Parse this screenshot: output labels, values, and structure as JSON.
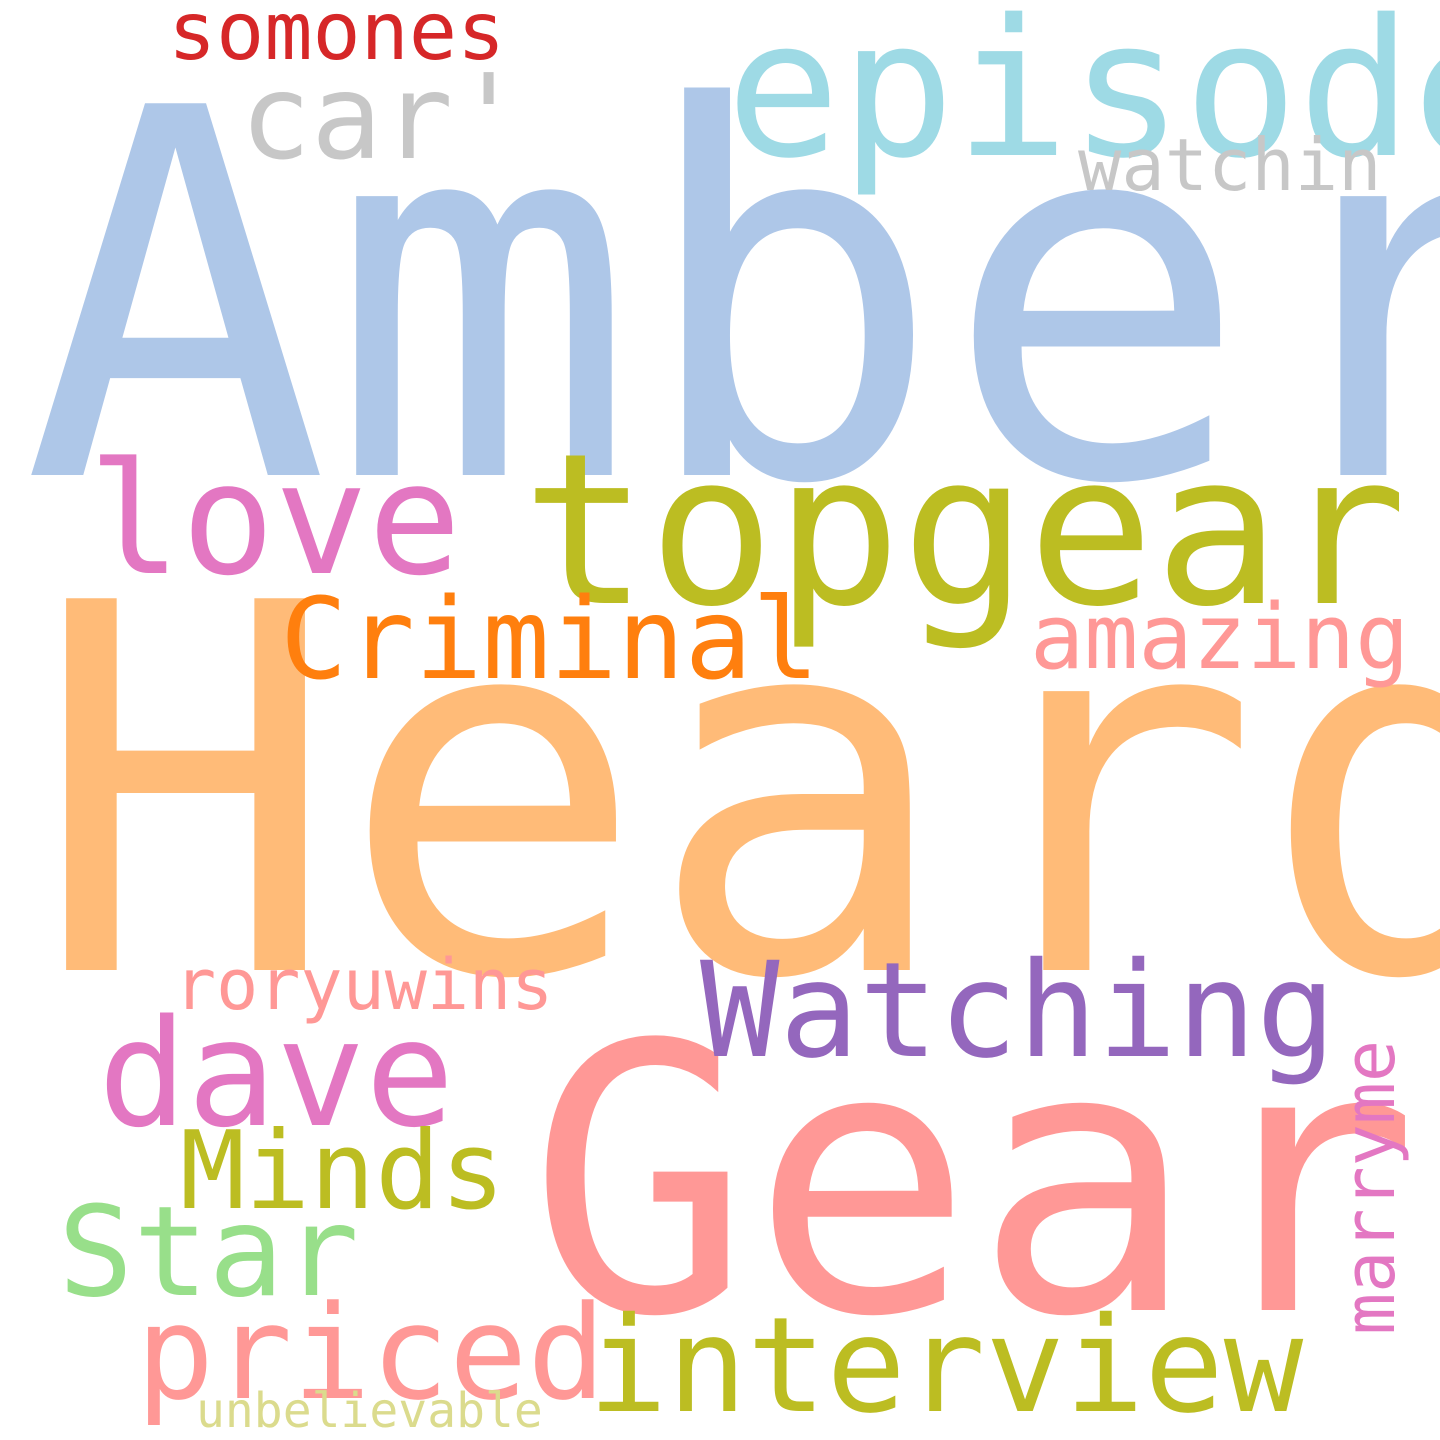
{
  "words": [
    {
      "text": "Amber",
      "color": "#aec7e8"
    },
    {
      "text": "Heard",
      "color": "#ffbb78"
    },
    {
      "text": "Gear",
      "color": "#ff9896"
    },
    {
      "text": "topgear",
      "color": "#bcbd22"
    },
    {
      "text": "episode",
      "color": "#9edae5"
    },
    {
      "text": "car'",
      "color": "#c7c7c7"
    },
    {
      "text": "somones",
      "color": "#d62728"
    },
    {
      "text": "watchin",
      "color": "#c7c7c7"
    },
    {
      "text": "love",
      "color": "#e377c2"
    },
    {
      "text": "Criminal",
      "color": "#ff7f0e"
    },
    {
      "text": "amazing",
      "color": "#ff9896"
    },
    {
      "text": "Watching",
      "color": "#9467bd"
    },
    {
      "text": "roryuwins",
      "color": "#ff9896"
    },
    {
      "text": "dave",
      "color": "#e377c2"
    },
    {
      "text": "Minds",
      "color": "#bcbd22"
    },
    {
      "text": "Star",
      "color": "#98df8a"
    },
    {
      "text": "priced",
      "color": "#ff9896"
    },
    {
      "text": "interview",
      "color": "#bcbd22"
    },
    {
      "text": "marryme",
      "color": "#e377c2"
    },
    {
      "text": "unbelievable",
      "color": "#dbdb8d"
    }
  ]
}
